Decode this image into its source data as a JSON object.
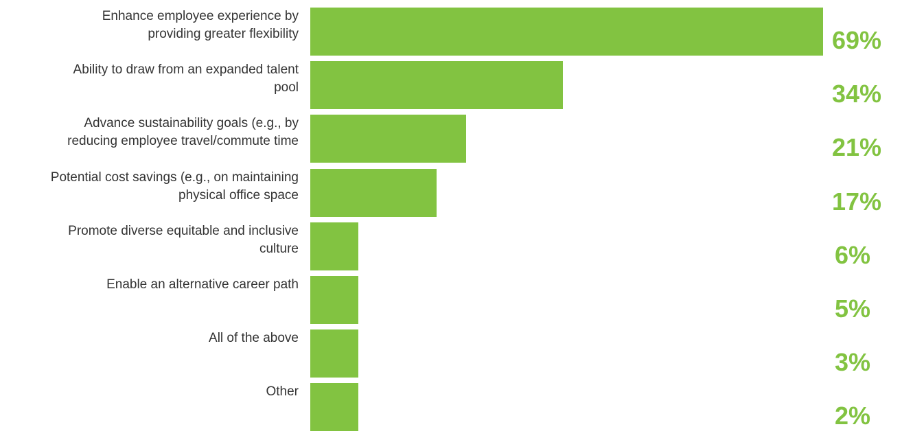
{
  "colors": {
    "bar": "#82c341",
    "value_text": "#82c341",
    "label_text": "#333333"
  },
  "chart_data": {
    "type": "bar",
    "orientation": "horizontal",
    "categories": [
      "Enhance employee experience by\nproviding greater flexibility",
      "Ability to draw from an expanded talent\npool",
      "Advance sustainability goals (e.g., by\nreducing employee travel/commute time",
      "Potential cost savings (e.g., on maintaining\nphysical office space",
      "Promote diverse equitable and inclusive\nculture",
      "Enable an alternative career path",
      "All of the above",
      "Other"
    ],
    "values": [
      69,
      34,
      21,
      17,
      6,
      5,
      3,
      2
    ],
    "value_labels": [
      "69%",
      "34%",
      "21%",
      "17%",
      "6%",
      "5%",
      "3%",
      "2%"
    ],
    "unit": "%",
    "title": "",
    "xlabel": "",
    "ylabel": "",
    "grid": false,
    "legend": "none"
  }
}
